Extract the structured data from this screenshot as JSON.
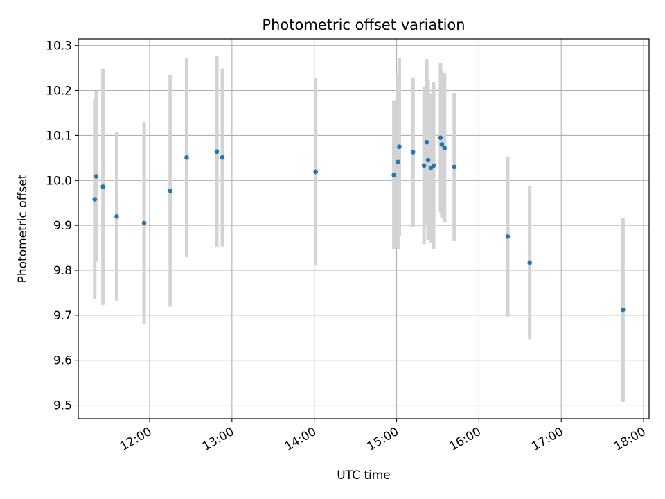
{
  "chart_data": {
    "type": "scatter",
    "title": "Photometric offset variation",
    "xlabel": "UTC time",
    "ylabel": "Photometric offset",
    "xlim": [
      "11:08",
      "18:04"
    ],
    "ylim": [
      9.47,
      10.315
    ],
    "x_ticks": [
      "12:00",
      "13:00",
      "14:00",
      "15:00",
      "16:00",
      "17:00",
      "18:00"
    ],
    "y_ticks": [
      "9.5",
      "9.6",
      "9.7",
      "9.8",
      "9.9",
      "10.0",
      "10.1",
      "10.2",
      "10.3"
    ],
    "grid": true,
    "colors": {
      "points": "#1f77b4",
      "errorbars": "#d3d3d3",
      "grid": "#b0b0b0"
    },
    "points": [
      {
        "t": "11:20",
        "y": 9.958,
        "err": 0.222
      },
      {
        "t": "11:21",
        "y": 10.009,
        "err": 0.19
      },
      {
        "t": "11:26",
        "y": 9.986,
        "err": 0.263
      },
      {
        "t": "11:36",
        "y": 9.92,
        "err": 0.188
      },
      {
        "t": "11:56",
        "y": 9.905,
        "err": 0.225
      },
      {
        "t": "12:15",
        "y": 9.977,
        "err": 0.258
      },
      {
        "t": "12:27",
        "y": 10.051,
        "err": 0.222
      },
      {
        "t": "12:49",
        "y": 10.064,
        "err": 0.212
      },
      {
        "t": "12:53",
        "y": 10.051,
        "err": 0.198
      },
      {
        "t": "14:01",
        "y": 10.019,
        "err": 0.208
      },
      {
        "t": "14:58",
        "y": 10.012,
        "err": 0.165
      },
      {
        "t": "15:01",
        "y": 10.041,
        "err": 0.195
      },
      {
        "t": "15:02",
        "y": 10.075,
        "err": 0.198
      },
      {
        "t": "15:12",
        "y": 10.063,
        "err": 0.166
      },
      {
        "t": "15:20",
        "y": 10.033,
        "err": 0.175
      },
      {
        "t": "15:22",
        "y": 10.085,
        "err": 0.185
      },
      {
        "t": "15:23",
        "y": 10.045,
        "err": 0.178
      },
      {
        "t": "15:25",
        "y": 10.028,
        "err": 0.166
      },
      {
        "t": "15:27",
        "y": 10.033,
        "err": 0.186
      },
      {
        "t": "15:32",
        "y": 10.095,
        "err": 0.166
      },
      {
        "t": "15:33",
        "y": 10.08,
        "err": 0.163
      },
      {
        "t": "15:35",
        "y": 10.072,
        "err": 0.166
      },
      {
        "t": "15:42",
        "y": 10.03,
        "err": 0.165
      },
      {
        "t": "16:21",
        "y": 9.875,
        "err": 0.178
      },
      {
        "t": "16:37",
        "y": 9.817,
        "err": 0.17
      },
      {
        "t": "17:45",
        "y": 9.712,
        "err": 0.205
      }
    ]
  }
}
